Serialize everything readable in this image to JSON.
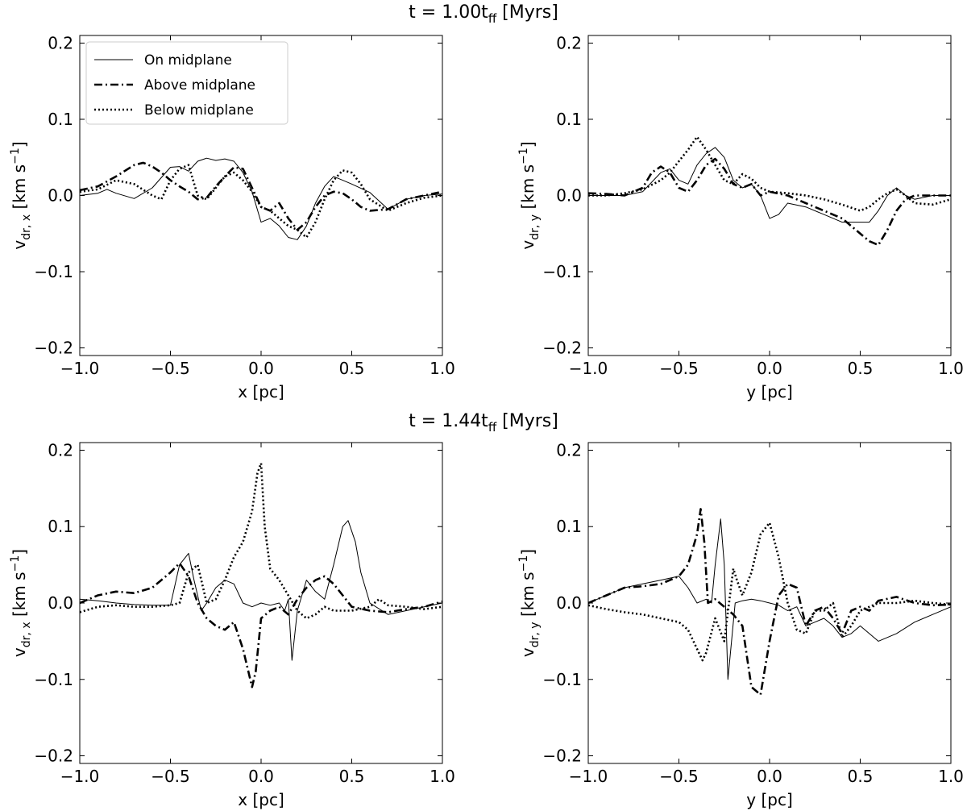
{
  "figure": {
    "row_titles": [
      {
        "main": "t = 1.00t",
        "sub": "ff",
        "tail": " [Myrs]"
      },
      {
        "main": "t = 1.44t",
        "sub": "ff",
        "tail": " [Myrs]"
      }
    ]
  },
  "legend": {
    "entries": [
      {
        "label": "On midplane",
        "style": "solid"
      },
      {
        "label": "Above midplane",
        "style": "dashdot"
      },
      {
        "label": "Below midplane",
        "style": "dotted"
      }
    ]
  },
  "chart_data": [
    {
      "type": "line",
      "row": 0,
      "col": 0,
      "xlabel": "x [pc]",
      "ylabel_main": "v",
      "ylabel_sub": "dr, x",
      "ylabel_unit": " [km s",
      "ylabel_exp": "−1",
      "ylabel_end": "]",
      "xlim": [
        -1.0,
        1.0
      ],
      "ylim": [
        -0.21,
        0.21
      ],
      "xticks": [
        -1.0,
        -0.5,
        0.0,
        0.5,
        1.0
      ],
      "xtick_labels": [
        "−1.0",
        "−0.5",
        "0.0",
        "0.5",
        "1.0"
      ],
      "yticks": [
        -0.2,
        -0.1,
        0.0,
        0.1,
        0.2
      ],
      "ytick_labels": [
        "−0.2",
        "−0.1",
        "0.0",
        "0.1",
        "0.2"
      ],
      "series": [
        {
          "name": "On midplane",
          "style": "solid",
          "x": [
            -1.0,
            -0.9,
            -0.85,
            -0.8,
            -0.7,
            -0.6,
            -0.5,
            -0.45,
            -0.4,
            -0.35,
            -0.3,
            -0.25,
            -0.2,
            -0.15,
            -0.1,
            -0.05,
            0.0,
            0.05,
            0.1,
            0.15,
            0.2,
            0.25,
            0.3,
            0.35,
            0.4,
            0.45,
            0.5,
            0.6,
            0.7,
            0.8,
            0.9,
            1.0
          ],
          "y": [
            0.0,
            0.003,
            0.008,
            0.003,
            -0.004,
            0.01,
            0.037,
            0.038,
            0.032,
            0.045,
            0.049,
            0.046,
            0.048,
            0.045,
            0.03,
            0.005,
            -0.035,
            -0.03,
            -0.04,
            -0.055,
            -0.058,
            -0.04,
            -0.01,
            0.012,
            0.025,
            0.02,
            0.015,
            0.004,
            -0.018,
            -0.005,
            0.0,
            0.002
          ]
        },
        {
          "name": "Above midplane",
          "style": "dashdot",
          "x": [
            -1.0,
            -0.9,
            -0.8,
            -0.7,
            -0.65,
            -0.6,
            -0.55,
            -0.5,
            -0.45,
            -0.4,
            -0.35,
            -0.3,
            -0.25,
            -0.2,
            -0.15,
            -0.1,
            -0.05,
            0.0,
            0.05,
            0.1,
            0.15,
            0.2,
            0.25,
            0.3,
            0.35,
            0.4,
            0.45,
            0.5,
            0.55,
            0.6,
            0.7,
            0.8,
            0.9,
            1.0
          ],
          "y": [
            0.007,
            0.012,
            0.025,
            0.04,
            0.043,
            0.038,
            0.03,
            0.02,
            0.012,
            0.005,
            -0.005,
            -0.003,
            0.012,
            0.025,
            0.037,
            0.035,
            0.01,
            -0.015,
            -0.02,
            -0.01,
            -0.03,
            -0.045,
            -0.035,
            -0.015,
            0.0,
            0.005,
            0.003,
            -0.005,
            -0.015,
            -0.02,
            -0.018,
            -0.005,
            0.0,
            0.005
          ]
        },
        {
          "name": "Below midplane",
          "style": "dotted",
          "x": [
            -1.0,
            -0.9,
            -0.8,
            -0.7,
            -0.6,
            -0.55,
            -0.5,
            -0.45,
            -0.4,
            -0.35,
            -0.3,
            -0.25,
            -0.2,
            -0.15,
            -0.1,
            -0.05,
            0.0,
            0.05,
            0.1,
            0.15,
            0.2,
            0.25,
            0.3,
            0.35,
            0.4,
            0.45,
            0.5,
            0.55,
            0.6,
            0.7,
            0.8,
            0.9,
            1.0
          ],
          "y": [
            0.005,
            0.008,
            0.02,
            0.015,
            0.0,
            -0.005,
            0.02,
            0.035,
            0.04,
            0.0,
            -0.005,
            0.01,
            0.025,
            0.03,
            0.02,
            0.005,
            -0.015,
            -0.02,
            -0.03,
            -0.04,
            -0.045,
            -0.055,
            -0.035,
            -0.005,
            0.02,
            0.033,
            0.03,
            0.015,
            -0.005,
            -0.02,
            -0.01,
            -0.003,
            0.0
          ]
        }
      ]
    },
    {
      "type": "line",
      "row": 0,
      "col": 1,
      "xlabel": "y [pc]",
      "ylabel_main": "v",
      "ylabel_sub": "dr, y",
      "ylabel_unit": " [km s",
      "ylabel_exp": "−1",
      "ylabel_end": "]",
      "xlim": [
        -1.0,
        1.0
      ],
      "ylim": [
        -0.21,
        0.21
      ],
      "xticks": [
        -1.0,
        -0.5,
        0.0,
        0.5,
        1.0
      ],
      "xtick_labels": [
        "−1.0",
        "−0.5",
        "0.0",
        "0.5",
        "1.0"
      ],
      "yticks": [
        -0.2,
        -0.1,
        0.0,
        0.1,
        0.2
      ],
      "ytick_labels": [
        "−0.2",
        "−0.1",
        "0.0",
        "0.1",
        "0.2"
      ],
      "series": [
        {
          "name": "On midplane",
          "style": "solid",
          "x": [
            -1.0,
            -0.9,
            -0.8,
            -0.7,
            -0.6,
            -0.55,
            -0.5,
            -0.45,
            -0.4,
            -0.35,
            -0.3,
            -0.25,
            -0.2,
            -0.15,
            -0.1,
            -0.05,
            0.0,
            0.05,
            0.1,
            0.2,
            0.3,
            0.4,
            0.5,
            0.55,
            0.6,
            0.65,
            0.7,
            0.75,
            0.8,
            0.9,
            1.0
          ],
          "y": [
            0.0,
            0.0,
            0.0,
            0.005,
            0.03,
            0.035,
            0.02,
            0.015,
            0.04,
            0.055,
            0.063,
            0.05,
            0.02,
            0.01,
            0.015,
            0.0,
            -0.03,
            -0.025,
            -0.01,
            -0.015,
            -0.025,
            -0.035,
            -0.035,
            -0.035,
            -0.02,
            0.0,
            0.01,
            0.0,
            -0.005,
            0.0,
            0.0
          ]
        },
        {
          "name": "Above midplane",
          "style": "dashdot",
          "x": [
            -1.0,
            -0.9,
            -0.8,
            -0.7,
            -0.65,
            -0.6,
            -0.55,
            -0.5,
            -0.45,
            -0.4,
            -0.35,
            -0.3,
            -0.25,
            -0.2,
            -0.15,
            -0.1,
            -0.05,
            0.0,
            0.1,
            0.2,
            0.3,
            0.4,
            0.45,
            0.5,
            0.55,
            0.6,
            0.65,
            0.7,
            0.75,
            0.8,
            0.9,
            1.0
          ],
          "y": [
            0.003,
            0.002,
            0.0,
            0.01,
            0.03,
            0.038,
            0.03,
            0.01,
            0.005,
            0.02,
            0.04,
            0.048,
            0.035,
            0.015,
            0.01,
            0.015,
            0.0,
            0.005,
            0.0,
            -0.01,
            -0.02,
            -0.03,
            -0.04,
            -0.05,
            -0.06,
            -0.065,
            -0.045,
            -0.02,
            -0.005,
            0.0,
            0.0,
            0.0
          ]
        },
        {
          "name": "Below midplane",
          "style": "dotted",
          "x": [
            -1.0,
            -0.9,
            -0.8,
            -0.7,
            -0.6,
            -0.55,
            -0.5,
            -0.45,
            -0.4,
            -0.35,
            -0.3,
            -0.25,
            -0.2,
            -0.15,
            -0.1,
            -0.05,
            0.0,
            0.1,
            0.2,
            0.3,
            0.4,
            0.5,
            0.55,
            0.6,
            0.65,
            0.7,
            0.75,
            0.8,
            0.9,
            1.0
          ],
          "y": [
            0.0,
            0.0,
            0.003,
            0.008,
            0.02,
            0.03,
            0.045,
            0.06,
            0.077,
            0.06,
            0.04,
            0.02,
            0.015,
            0.028,
            0.022,
            0.01,
            0.005,
            0.003,
            0.0,
            -0.005,
            -0.012,
            -0.02,
            -0.015,
            -0.005,
            0.003,
            0.008,
            0.0,
            -0.01,
            -0.012,
            -0.005
          ]
        }
      ]
    },
    {
      "type": "line",
      "row": 1,
      "col": 0,
      "xlabel": "x [pc]",
      "ylabel_main": "v",
      "ylabel_sub": "dr, x",
      "ylabel_unit": " [km s",
      "ylabel_exp": "−1",
      "ylabel_end": "]",
      "xlim": [
        -1.0,
        1.0
      ],
      "ylim": [
        -0.21,
        0.21
      ],
      "xticks": [
        -1.0,
        -0.5,
        0.0,
        0.5,
        1.0
      ],
      "xtick_labels": [
        "−1.0",
        "−0.5",
        "0.0",
        "0.5",
        "1.0"
      ],
      "yticks": [
        -0.2,
        -0.1,
        0.0,
        0.1,
        0.2
      ],
      "ytick_labels": [
        "−0.2",
        "−0.1",
        "0.0",
        "0.1",
        "0.2"
      ],
      "series": [
        {
          "name": "On midplane",
          "style": "solid",
          "x": [
            -1.0,
            -0.9,
            -0.8,
            -0.7,
            -0.6,
            -0.5,
            -0.45,
            -0.4,
            -0.37,
            -0.33,
            -0.3,
            -0.25,
            -0.2,
            -0.15,
            -0.1,
            -0.05,
            0.0,
            0.05,
            0.1,
            0.13,
            0.15,
            0.17,
            0.2,
            0.25,
            0.3,
            0.35,
            0.4,
            0.45,
            0.48,
            0.52,
            0.55,
            0.6,
            0.7,
            0.8,
            0.9,
            1.0
          ],
          "y": [
            0.005,
            0.003,
            0.0,
            -0.002,
            -0.003,
            -0.003,
            0.05,
            0.065,
            0.03,
            -0.01,
            0.0,
            0.02,
            0.03,
            0.025,
            0.0,
            -0.005,
            0.0,
            -0.003,
            0.0,
            -0.01,
            0.005,
            -0.075,
            -0.01,
            0.03,
            0.015,
            0.005,
            0.05,
            0.1,
            0.108,
            0.08,
            0.04,
            0.0,
            -0.015,
            -0.01,
            -0.005,
            0.0
          ]
        },
        {
          "name": "Above midplane",
          "style": "dashdot",
          "x": [
            -1.0,
            -0.9,
            -0.8,
            -0.7,
            -0.6,
            -0.5,
            -0.45,
            -0.4,
            -0.35,
            -0.3,
            -0.25,
            -0.2,
            -0.15,
            -0.1,
            -0.07,
            -0.05,
            -0.03,
            0.0,
            0.05,
            0.1,
            0.15,
            0.2,
            0.25,
            0.3,
            0.35,
            0.4,
            0.45,
            0.5,
            0.6,
            0.7,
            0.8,
            0.9,
            1.0
          ],
          "y": [
            0.0,
            0.01,
            0.015,
            0.013,
            0.02,
            0.04,
            0.052,
            0.035,
            0.0,
            -0.02,
            -0.03,
            -0.035,
            -0.025,
            -0.06,
            -0.09,
            -0.11,
            -0.09,
            -0.02,
            -0.01,
            -0.005,
            -0.015,
            0.005,
            0.02,
            0.03,
            0.035,
            0.025,
            0.01,
            -0.005,
            -0.01,
            -0.012,
            -0.008,
            -0.005,
            0.002
          ]
        },
        {
          "name": "Below midplane",
          "style": "dotted",
          "x": [
            -1.0,
            -0.9,
            -0.8,
            -0.7,
            -0.6,
            -0.5,
            -0.45,
            -0.4,
            -0.35,
            -0.3,
            -0.25,
            -0.2,
            -0.15,
            -0.1,
            -0.05,
            -0.02,
            0.0,
            0.02,
            0.05,
            0.1,
            0.15,
            0.2,
            0.25,
            0.3,
            0.35,
            0.4,
            0.5,
            0.6,
            0.65,
            0.7,
            0.8,
            0.9,
            1.0
          ],
          "y": [
            -0.012,
            -0.005,
            -0.003,
            -0.005,
            -0.005,
            -0.003,
            0.0,
            0.04,
            0.05,
            0.0,
            0.005,
            0.03,
            0.06,
            0.08,
            0.12,
            0.17,
            0.183,
            0.1,
            0.045,
            0.03,
            0.01,
            -0.01,
            -0.02,
            -0.015,
            -0.005,
            -0.01,
            -0.01,
            -0.005,
            0.005,
            -0.003,
            -0.005,
            -0.008,
            -0.005
          ]
        }
      ]
    },
    {
      "type": "line",
      "row": 1,
      "col": 1,
      "xlabel": "y [pc]",
      "ylabel_main": "v",
      "ylabel_sub": "dr, y",
      "ylabel_unit": " [km s",
      "ylabel_exp": "−1",
      "ylabel_end": "]",
      "xlim": [
        -1.0,
        1.0
      ],
      "ylim": [
        -0.21,
        0.21
      ],
      "xticks": [
        -1.0,
        -0.5,
        0.0,
        0.5,
        1.0
      ],
      "xtick_labels": [
        "−1.0",
        "−0.5",
        "0.0",
        "0.5",
        "1.0"
      ],
      "yticks": [
        -0.2,
        -0.1,
        0.0,
        0.1,
        0.2
      ],
      "ytick_labels": [
        "−0.2",
        "−0.1",
        "0.0",
        "0.1",
        "0.2"
      ],
      "series": [
        {
          "name": "On midplane",
          "style": "solid",
          "x": [
            -1.0,
            -0.9,
            -0.8,
            -0.7,
            -0.6,
            -0.5,
            -0.45,
            -0.4,
            -0.35,
            -0.32,
            -0.3,
            -0.27,
            -0.25,
            -0.23,
            -0.21,
            -0.19,
            -0.15,
            -0.1,
            -0.05,
            0.0,
            0.05,
            0.1,
            0.15,
            0.2,
            0.25,
            0.3,
            0.35,
            0.4,
            0.45,
            0.5,
            0.6,
            0.7,
            0.8,
            0.9,
            1.0
          ],
          "y": [
            0.0,
            0.01,
            0.02,
            0.025,
            0.03,
            0.035,
            0.02,
            0.0,
            0.005,
            0.0,
            0.05,
            0.11,
            0.05,
            -0.1,
            -0.05,
            0.0,
            0.003,
            0.005,
            0.003,
            0.0,
            -0.003,
            -0.01,
            -0.005,
            -0.03,
            -0.025,
            -0.02,
            -0.03,
            -0.045,
            -0.04,
            -0.03,
            -0.05,
            -0.04,
            -0.025,
            -0.015,
            -0.005
          ]
        },
        {
          "name": "Above midplane",
          "style": "dashdot",
          "x": [
            -1.0,
            -0.9,
            -0.8,
            -0.7,
            -0.6,
            -0.5,
            -0.45,
            -0.4,
            -0.38,
            -0.36,
            -0.34,
            -0.3,
            -0.25,
            -0.2,
            -0.15,
            -0.1,
            -0.05,
            0.0,
            0.05,
            0.1,
            0.15,
            0.2,
            0.25,
            0.3,
            0.35,
            0.4,
            0.45,
            0.5,
            0.55,
            0.6,
            0.7,
            0.8,
            0.9,
            1.0
          ],
          "y": [
            0.0,
            0.01,
            0.02,
            0.022,
            0.025,
            0.035,
            0.05,
            0.09,
            0.123,
            0.08,
            0.0,
            0.005,
            -0.005,
            -0.015,
            -0.03,
            -0.11,
            -0.12,
            -0.05,
            0.01,
            0.025,
            0.02,
            -0.03,
            -0.01,
            -0.005,
            -0.02,
            -0.04,
            -0.01,
            -0.005,
            -0.01,
            0.003,
            0.008,
            0.0,
            -0.003,
            -0.002
          ]
        },
        {
          "name": "Below midplane",
          "style": "dotted",
          "x": [
            -1.0,
            -0.9,
            -0.8,
            -0.7,
            -0.6,
            -0.5,
            -0.45,
            -0.4,
            -0.37,
            -0.35,
            -0.3,
            -0.25,
            -0.2,
            -0.18,
            -0.15,
            -0.1,
            -0.05,
            0.0,
            0.05,
            0.1,
            0.15,
            0.2,
            0.25,
            0.3,
            0.35,
            0.4,
            0.45,
            0.5,
            0.6,
            0.7,
            0.8,
            0.9,
            1.0
          ],
          "y": [
            -0.003,
            -0.008,
            -0.012,
            -0.015,
            -0.02,
            -0.025,
            -0.035,
            -0.06,
            -0.075,
            -0.065,
            -0.02,
            -0.05,
            0.045,
            0.03,
            0.01,
            0.04,
            0.09,
            0.105,
            0.06,
            0.0,
            -0.035,
            -0.04,
            -0.01,
            -0.01,
            0.0,
            -0.045,
            -0.03,
            -0.01,
            0.0,
            0.0,
            0.003,
            0.0,
            -0.002
          ]
        }
      ]
    }
  ]
}
